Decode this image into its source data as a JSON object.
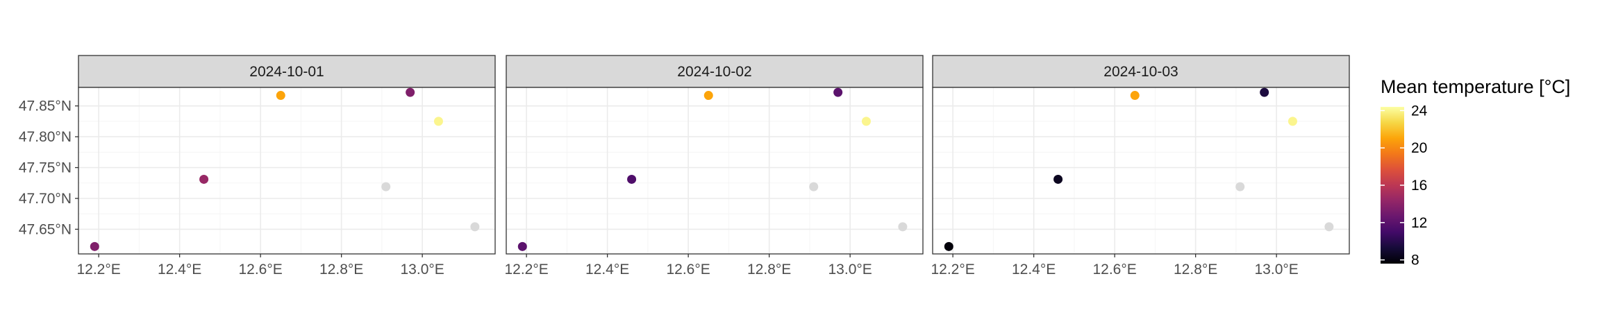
{
  "chart_data": {
    "type": "scatter",
    "facets": [
      "2024-10-01",
      "2024-10-02",
      "2024-10-03"
    ],
    "x_ticks": [
      "12.2°E",
      "12.4°E",
      "12.6°E",
      "12.8°E",
      "13.0°E"
    ],
    "x_tick_values": [
      12.2,
      12.4,
      12.6,
      12.8,
      13.0
    ],
    "y_ticks": [
      "47.65°N",
      "47.70°N",
      "47.75°N",
      "47.80°N",
      "47.85°N"
    ],
    "y_tick_values": [
      47.65,
      47.7,
      47.75,
      47.8,
      47.85
    ],
    "xlim": [
      12.15,
      13.18
    ],
    "ylim": [
      47.61,
      47.88
    ],
    "points": [
      {
        "facet": "2024-10-01",
        "lon": 12.19,
        "lat": 47.622,
        "temp": 13.5
      },
      {
        "facet": "2024-10-01",
        "lon": 12.46,
        "lat": 47.731,
        "temp": 14.5
      },
      {
        "facet": "2024-10-01",
        "lon": 12.65,
        "lat": 47.867,
        "temp": 21
      },
      {
        "facet": "2024-10-01",
        "lon": 12.97,
        "lat": 47.872,
        "temp": 13.5
      },
      {
        "facet": "2024-10-01",
        "lon": 13.04,
        "lat": 47.825,
        "temp": 24
      },
      {
        "facet": "2024-10-01",
        "lon": 12.91,
        "lat": 47.719,
        "temp": null
      },
      {
        "facet": "2024-10-01",
        "lon": 13.13,
        "lat": 47.654,
        "temp": null
      },
      {
        "facet": "2024-10-02",
        "lon": 12.19,
        "lat": 47.622,
        "temp": 12
      },
      {
        "facet": "2024-10-02",
        "lon": 12.46,
        "lat": 47.731,
        "temp": 11.5
      },
      {
        "facet": "2024-10-02",
        "lon": 12.65,
        "lat": 47.867,
        "temp": 21
      },
      {
        "facet": "2024-10-02",
        "lon": 12.97,
        "lat": 47.872,
        "temp": 12
      },
      {
        "facet": "2024-10-02",
        "lon": 13.04,
        "lat": 47.825,
        "temp": 24
      },
      {
        "facet": "2024-10-02",
        "lon": 12.91,
        "lat": 47.719,
        "temp": null
      },
      {
        "facet": "2024-10-02",
        "lon": 13.13,
        "lat": 47.654,
        "temp": null
      },
      {
        "facet": "2024-10-03",
        "lon": 12.19,
        "lat": 47.622,
        "temp": 7.8
      },
      {
        "facet": "2024-10-03",
        "lon": 12.46,
        "lat": 47.731,
        "temp": 8.5
      },
      {
        "facet": "2024-10-03",
        "lon": 12.65,
        "lat": 47.867,
        "temp": 21
      },
      {
        "facet": "2024-10-03",
        "lon": 12.97,
        "lat": 47.872,
        "temp": 9.5
      },
      {
        "facet": "2024-10-03",
        "lon": 13.04,
        "lat": 47.825,
        "temp": 24
      },
      {
        "facet": "2024-10-03",
        "lon": 12.91,
        "lat": 47.719,
        "temp": null
      },
      {
        "facet": "2024-10-03",
        "lon": 13.13,
        "lat": 47.654,
        "temp": null
      }
    ],
    "legend": {
      "title": "Mean temperature [°C]",
      "ticks": [
        8,
        12,
        16,
        20,
        24
      ],
      "range": [
        7.6,
        24.4
      ],
      "colormap": "inferno",
      "na_color": "#d9d9d9",
      "position": "right"
    },
    "grid": true,
    "colors": {
      "strip_fill": "#d9d9d9",
      "panel_border": "#333333",
      "grid_major": "#ebebeb",
      "grid_minor": "#f5f5f5"
    }
  }
}
